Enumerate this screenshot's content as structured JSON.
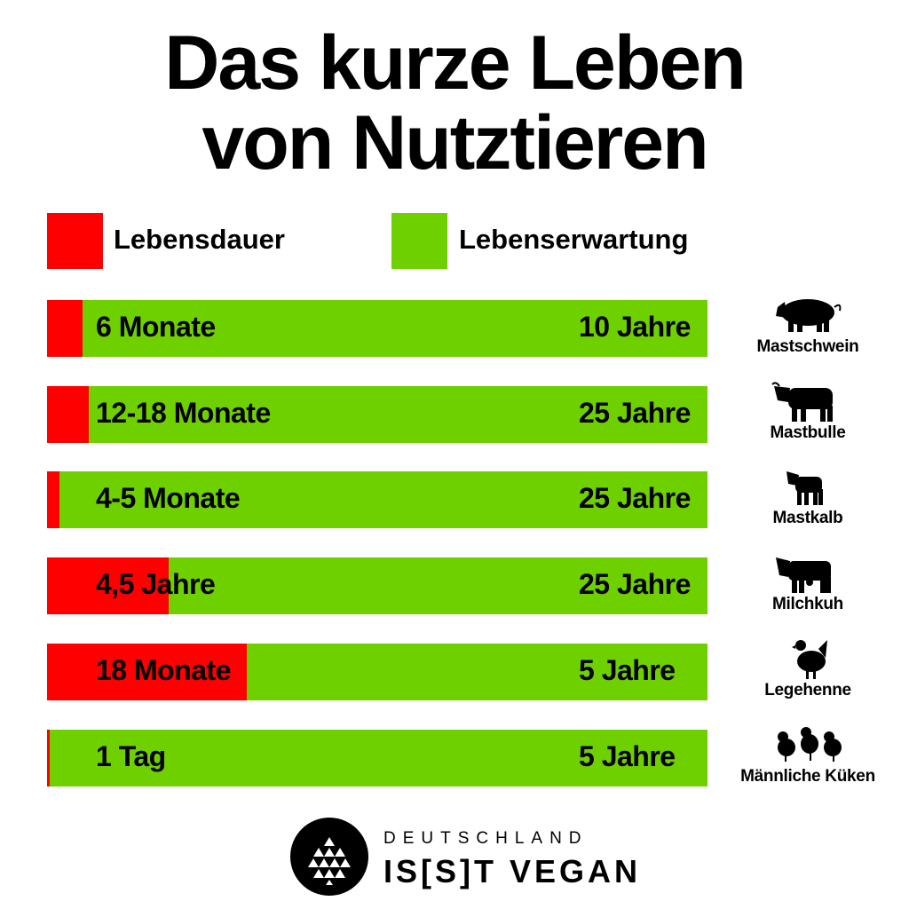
{
  "chart_data": {
    "type": "bar",
    "title": [
      "Das kurze Leben",
      "von Nutztieren"
    ],
    "legend": [
      {
        "label": "Lebensdauer",
        "color": "#ff0000"
      },
      {
        "label": "Lebenserwartung",
        "color": "#6fd000"
      }
    ],
    "legend_placement": "top-left",
    "rows": [
      {
        "animal": "Mastschwein",
        "icon": "pig-icon",
        "lifespan": "6 Monate",
        "expectancy": "10 Jahre",
        "lifespan_fraction": 0.054
      },
      {
        "animal": "Mastbulle",
        "icon": "bull-icon",
        "lifespan": "12-18 Monate",
        "expectancy": "25 Jahre",
        "lifespan_fraction": 0.063
      },
      {
        "animal": "Mastkalb",
        "icon": "calf-icon",
        "lifespan": "4-5 Monate",
        "expectancy": "25 Jahre",
        "lifespan_fraction": 0.019
      },
      {
        "animal": "Milchkuh",
        "icon": "cow-icon",
        "lifespan": "4,5 Jahre",
        "expectancy": "25 Jahre",
        "lifespan_fraction": 0.184
      },
      {
        "animal": "Legehenne",
        "icon": "hen-icon",
        "lifespan": "18 Monate",
        "expectancy": "5 Jahre",
        "lifespan_fraction": 0.302
      },
      {
        "animal": "Männliche Küken",
        "icon": "chicks-icon",
        "lifespan": "1 Tag",
        "expectancy": "5 Jahre",
        "lifespan_fraction": 0.004
      }
    ]
  },
  "logo": {
    "line1": "DEUTSCHLAND",
    "line2": "IS[S]T VEGAN"
  }
}
